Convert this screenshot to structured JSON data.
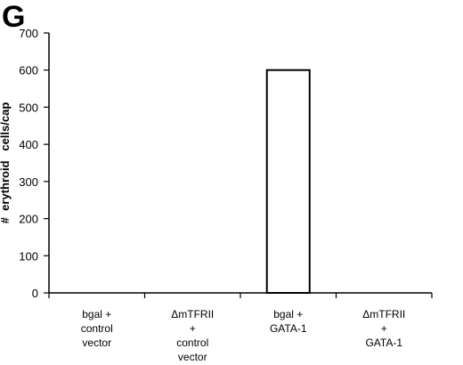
{
  "panel": {
    "letter": "G"
  },
  "chart_data": {
    "type": "bar",
    "categories": [
      [
        "bgal +",
        "control",
        "vector"
      ],
      [
        "ΔmTFRII",
        "+",
        "control",
        "vector"
      ],
      [
        "bgal +",
        "GATA-1"
      ],
      [
        "ΔmTFRII",
        "+",
        "GATA-1"
      ]
    ],
    "values": [
      0,
      0,
      600,
      0
    ],
    "ylabel": "#  erythroid   cells/cap",
    "ylim": [
      0,
      700
    ],
    "yticks": [
      0,
      100,
      200,
      300,
      400,
      500,
      600,
      700
    ],
    "grid": false,
    "bar_fill": "#ffffff",
    "bar_stroke": "#000000"
  }
}
